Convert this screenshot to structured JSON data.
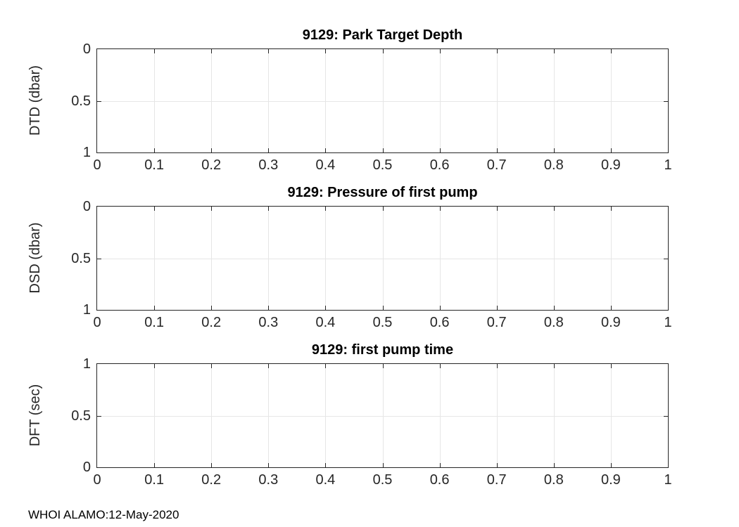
{
  "figure": {
    "background": "#ffffff"
  },
  "colors": {
    "axis": "#262626",
    "grid": "#e6e6e6",
    "title": "#000000",
    "tick_label": "#262626",
    "background": "#ffffff"
  },
  "footer": "WHOI ALAMO:12-May-2020",
  "chart_data": [
    {
      "type": "line",
      "title": "9129: Park Target Depth",
      "xlabel": "",
      "ylabel": "DTD (dbar)",
      "xlim": [
        0,
        1
      ],
      "ylim": [
        0,
        1
      ],
      "y_direction": "reverse",
      "grid": true,
      "x_ticks": [
        0,
        0.1,
        0.2,
        0.3,
        0.4,
        0.5,
        0.6,
        0.7,
        0.8,
        0.9,
        1
      ],
      "x_tick_labels": [
        "0",
        "0.1",
        "0.2",
        "0.3",
        "0.4",
        "0.5",
        "0.6",
        "0.7",
        "0.8",
        "0.9",
        "1"
      ],
      "y_ticks": [
        0,
        0.5,
        1
      ],
      "y_tick_labels": [
        "0",
        "0.5",
        "1"
      ],
      "series": []
    },
    {
      "type": "line",
      "title": "9129: Pressure of first pump",
      "xlabel": "",
      "ylabel": "DSD (dbar)",
      "xlim": [
        0,
        1
      ],
      "ylim": [
        0,
        1
      ],
      "y_direction": "reverse",
      "grid": true,
      "x_ticks": [
        0,
        0.1,
        0.2,
        0.3,
        0.4,
        0.5,
        0.6,
        0.7,
        0.8,
        0.9,
        1
      ],
      "x_tick_labels": [
        "0",
        "0.1",
        "0.2",
        "0.3",
        "0.4",
        "0.5",
        "0.6",
        "0.7",
        "0.8",
        "0.9",
        "1"
      ],
      "y_ticks": [
        0,
        0.5,
        1
      ],
      "y_tick_labels": [
        "0",
        "0.5",
        "1"
      ],
      "series": []
    },
    {
      "type": "line",
      "title": "9129: first pump time",
      "xlabel": "",
      "ylabel": "DFT (sec)",
      "xlim": [
        0,
        1
      ],
      "ylim": [
        0,
        1
      ],
      "y_direction": "normal",
      "grid": true,
      "x_ticks": [
        0,
        0.1,
        0.2,
        0.3,
        0.4,
        0.5,
        0.6,
        0.7,
        0.8,
        0.9,
        1
      ],
      "x_tick_labels": [
        "0",
        "0.1",
        "0.2",
        "0.3",
        "0.4",
        "0.5",
        "0.6",
        "0.7",
        "0.8",
        "0.9",
        "1"
      ],
      "y_ticks": [
        0,
        0.5,
        1
      ],
      "y_tick_labels": [
        "0",
        "0.5",
        "1"
      ],
      "series": []
    }
  ]
}
